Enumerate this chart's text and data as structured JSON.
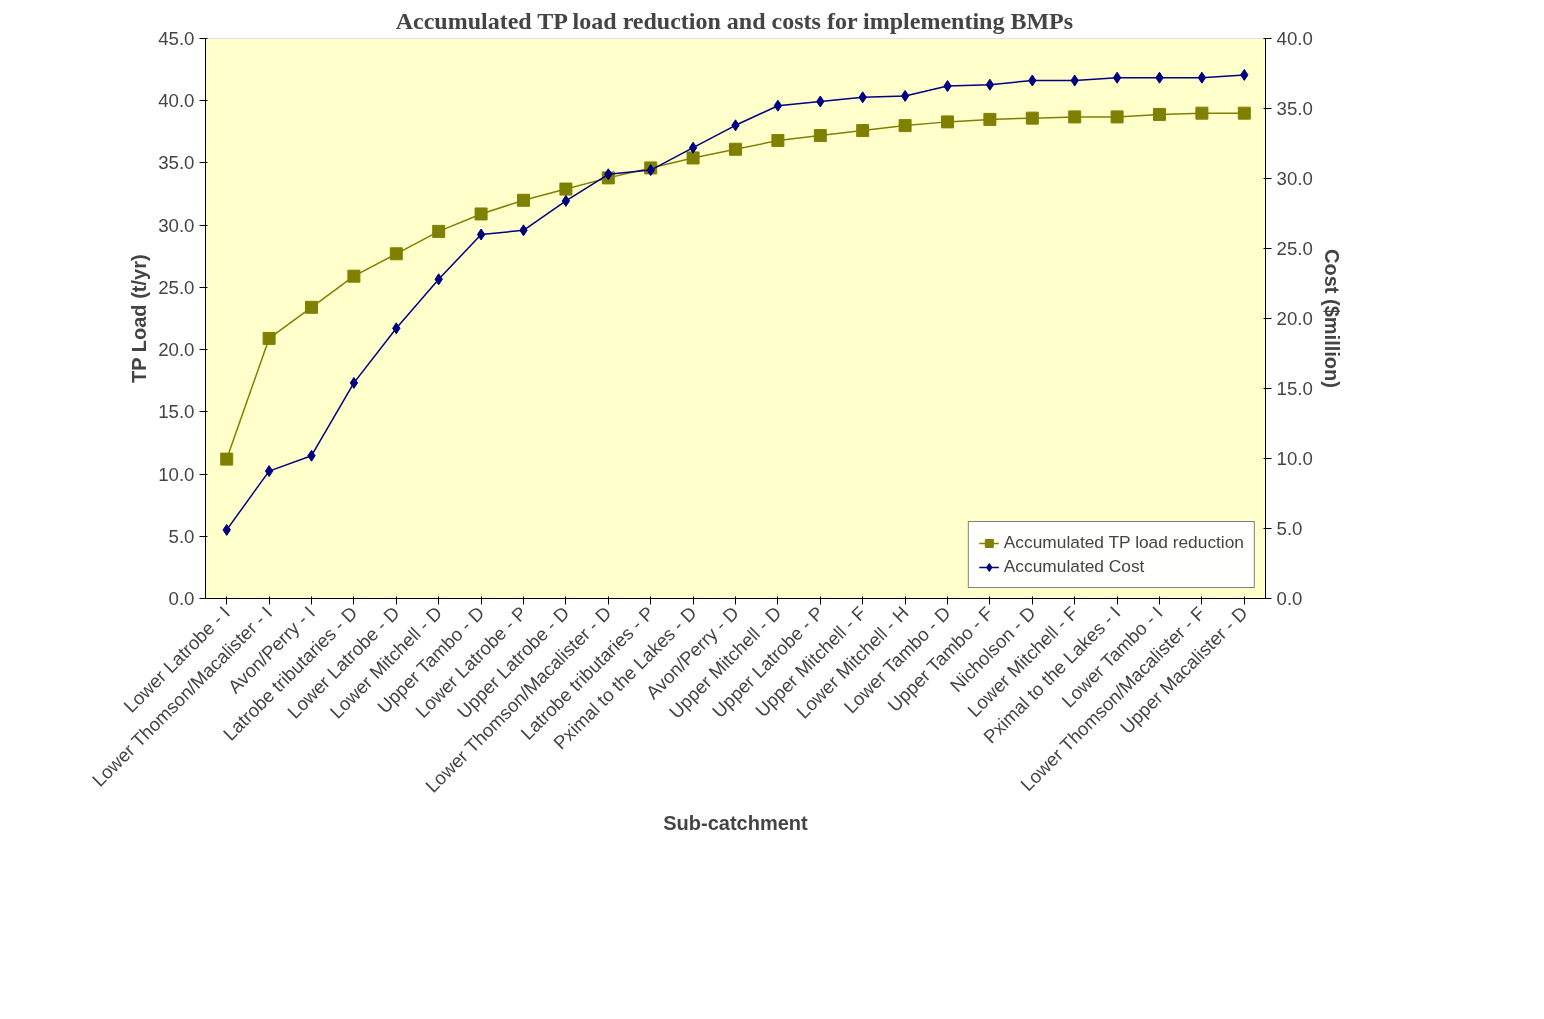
{
  "chart_data": {
    "type": "line",
    "title": "Accumulated TP load reduction and costs for implementing BMPs",
    "xlabel": "Sub-catchment",
    "ylabel": "TP Load (t/yr)",
    "y2label": "Cost ($million)",
    "categories": [
      "Lower Latrobe - I",
      "Lower Thomson/Macalister - I",
      "Avon/Perry - I",
      "Latrobe tributaries - D",
      "Lower Latrobe - D",
      "Lower Mitchell - D",
      "Upper Tambo - D",
      "Lower Latrobe - P",
      "Upper Latrobe - D",
      "Lower Thomson/Macalister - D",
      "Latrobe tributaries - P",
      "Pximal to the Lakes - D",
      "Avon/Perry - D",
      "Upper Mitchell - D",
      "Upper Latrobe - P",
      "Upper Mitchell - F",
      "Lower Mitchell - H",
      "Lower Tambo - D",
      "Upper Tambo - F",
      "Nicholson - D",
      "Lower Mitchell - F",
      "Pximal to the Lakes - I",
      "Lower Tambo - I",
      "Lower Thomson/Macalister - F",
      "Upper Macalister - D"
    ],
    "series": [
      {
        "name": "Accumulated TP load reduction",
        "color": "#808000",
        "marker": "square",
        "values": [
          11.2,
          20.9,
          23.4,
          25.9,
          27.7,
          29.5,
          30.9,
          32.0,
          32.9,
          33.8,
          34.6,
          35.4,
          36.1,
          36.8,
          37.2,
          37.6,
          38.0,
          38.3,
          38.5,
          38.6,
          38.7,
          38.7,
          38.9,
          39.0,
          39.0
        ]
      },
      {
        "name": "Accumulated Cost",
        "color": "#000080",
        "marker": "diamond",
        "axis": "y2",
        "values": [
          4.9,
          9.1,
          10.2,
          15.4,
          19.3,
          22.8,
          26.0,
          26.3,
          28.4,
          30.3,
          30.6,
          32.2,
          33.8,
          35.2,
          35.5,
          35.8,
          35.9,
          36.6,
          36.7,
          37.0,
          37.0,
          37.2,
          37.2,
          37.2,
          37.4
        ]
      }
    ],
    "ylim": [
      0,
      45
    ],
    "yticks": [
      {
        "value": 0,
        "label": "0.0"
      },
      {
        "value": 5,
        "label": "5.0"
      },
      {
        "value": 10,
        "label": "10.0"
      },
      {
        "value": 15,
        "label": "15.0"
      },
      {
        "value": 20,
        "label": "20.0"
      },
      {
        "value": 25,
        "label": "25.0"
      },
      {
        "value": 30,
        "label": "30.0"
      },
      {
        "value": 35,
        "label": "35.0"
      },
      {
        "value": 40,
        "label": "40.0"
      },
      {
        "value": 45,
        "label": "45.0"
      }
    ],
    "y2lim": [
      0,
      40
    ],
    "y2ticks": [
      {
        "value": 0,
        "label": "0.0"
      },
      {
        "value": 5,
        "label": "5.0"
      },
      {
        "value": 10,
        "label": "10.0"
      },
      {
        "value": 15,
        "label": "15.0"
      },
      {
        "value": 20,
        "label": "20.0"
      },
      {
        "value": 25,
        "label": "25.0"
      },
      {
        "value": 30,
        "label": "30.0"
      },
      {
        "value": 35,
        "label": "35.0"
      },
      {
        "value": 40,
        "label": "40.0"
      }
    ],
    "grid": false,
    "legend": "bottom right",
    "line_style": "solid"
  }
}
